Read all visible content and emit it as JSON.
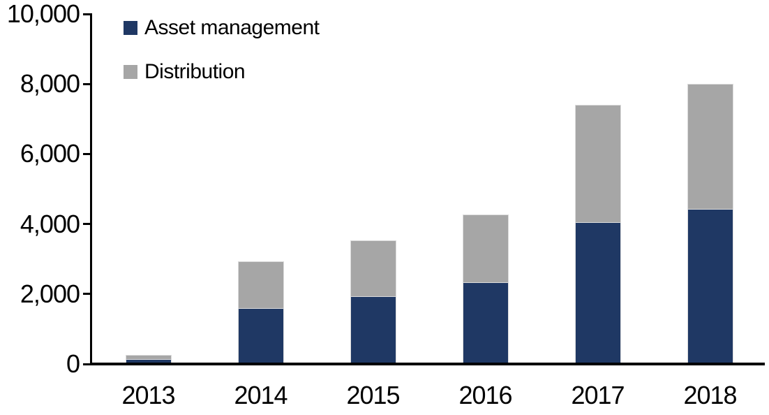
{
  "chart_data": {
    "type": "bar",
    "stacked": true,
    "title": "",
    "xlabel": "",
    "ylabel": "",
    "categories": [
      "2013",
      "2014",
      "2015",
      "2016",
      "2017",
      "2018"
    ],
    "series": [
      {
        "name": "Asset management",
        "color": "#1F3864",
        "values": [
          100,
          1550,
          1890,
          2300,
          4020,
          4400
        ]
      },
      {
        "name": "Distribution",
        "color": "#A6A6A6",
        "values": [
          120,
          1330,
          1600,
          1940,
          3350,
          3580
        ]
      }
    ],
    "totals": [
      220,
      2880,
      3490,
      4240,
      7370,
      7980
    ],
    "ylim": [
      0,
      10000
    ],
    "yticks": [
      0,
      2000,
      4000,
      6000,
      8000,
      10000
    ],
    "ytick_labels": [
      "0",
      "2,000",
      "4,000",
      "6,000",
      "8,000",
      "10,000"
    ],
    "grid": false,
    "legend_position": "top-left",
    "axis_color": "#000000",
    "background_color": "#FFFFFF"
  },
  "legend": {
    "items": [
      {
        "label": "Asset management",
        "color": "#1F3864"
      },
      {
        "label": "Distribution",
        "color": "#A6A6A6"
      }
    ]
  }
}
